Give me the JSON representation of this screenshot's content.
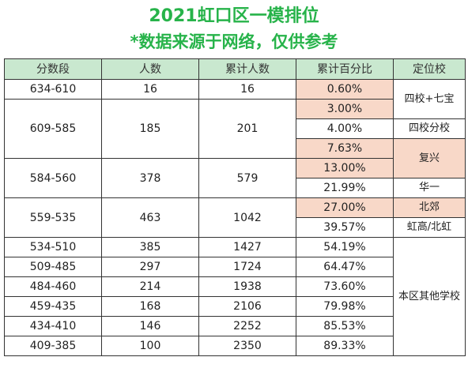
{
  "title": "2021虹口区一模排位",
  "subtitle": "*数据来源于网络，仅供参考",
  "headers": [
    "分数段",
    "人数",
    "累计人数",
    "累计百分比",
    "定位校"
  ],
  "ranges": [
    "634-610",
    "609-585",
    "584-560",
    "559-535",
    "534-510",
    "509-485",
    "484-460",
    "459-435",
    "434-410",
    "409-385"
  ],
  "counts": [
    "16",
    "185",
    "378",
    "463",
    "385",
    "297",
    "214",
    "168",
    "146",
    "100"
  ],
  "cumulative": [
    "16",
    "201",
    "579",
    "1042",
    "1427",
    "1724",
    "1938",
    "2106",
    "2252",
    "2350"
  ],
  "percents": [
    "0.60%",
    "3.00%",
    "4.00%",
    "7.63%",
    "13.00%",
    "21.99%",
    "27.00%",
    "39.57%",
    "54.19%",
    "64.47%",
    "73.60%",
    "79.98%",
    "85.53%",
    "89.33%"
  ],
  "schools": [
    "四校+七宝",
    "四校分校",
    "复兴",
    "华一",
    "北郊",
    "虹高/北虹",
    "本区其他学校"
  ],
  "colors": {
    "title": "#27b34a",
    "header_bg": "#c9e8cf",
    "highlight_bg": "#f8d8c8"
  }
}
